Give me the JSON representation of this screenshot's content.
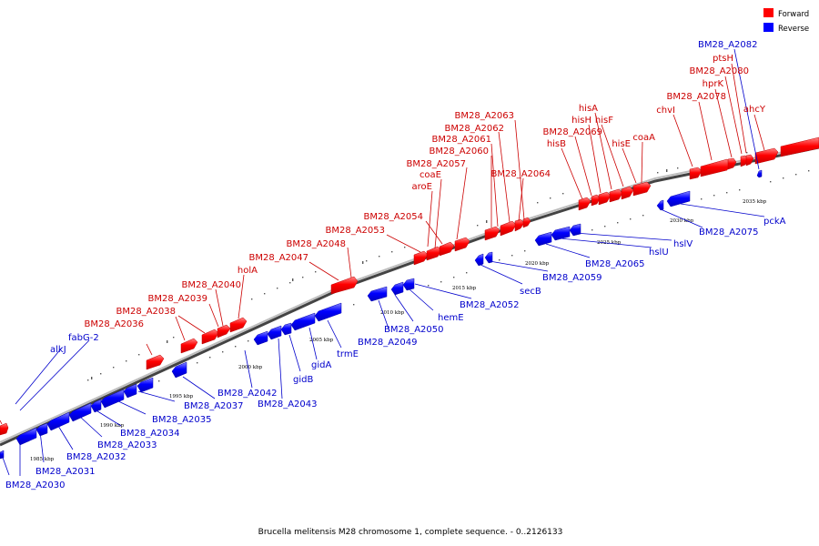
{
  "caption": "Brucella melitensis M28 chromosome 1, complete sequence. - 0..2126133",
  "legend": {
    "forward": {
      "label": "Forward",
      "color": "#ff0000"
    },
    "reverse": {
      "label": "Reverse",
      "color": "#0000ff"
    }
  },
  "ticks": [
    {
      "label": "1985 kbp",
      "x": 1985
    },
    {
      "label": "1990 kbp",
      "x": 1990
    },
    {
      "label": "1995 kbp",
      "x": 1995
    },
    {
      "label": "2000 kbp",
      "x": 2000
    },
    {
      "label": "2005 kbp",
      "x": 2005
    },
    {
      "label": "2010 kbp",
      "x": 2010
    },
    {
      "label": "2015 kbp",
      "x": 2015
    },
    {
      "label": "2020 kbp",
      "x": 2020
    },
    {
      "label": "2025 kbp",
      "x": 2025
    },
    {
      "label": "2030 kbp",
      "x": 2030
    },
    {
      "label": "2035 kbp",
      "x": 2035
    }
  ],
  "forward_labels": [
    "BM28_A2036",
    "BM28_A2038",
    "BM28_A2039",
    "BM28_A2040",
    "holA",
    "BM28_A2047",
    "BM28_A2048",
    "BM28_A2053",
    "BM28_A2054",
    "aroE",
    "coaE",
    "BM28_A2057",
    "BM28_A2060",
    "BM28_A2061",
    "BM28_A2062",
    "BM28_A2063",
    "BM28_A2064",
    "hisB",
    "BM28_A2069",
    "hisH",
    "hisA",
    "hisF",
    "hisE",
    "coaA",
    "chvI",
    "BM28_A2078",
    "hprK",
    "BM28_A2080",
    "ptsH",
    "ahcY"
  ],
  "reverse_labels": [
    "BM28_A2030",
    "BM28_A2031",
    "BM28_A2032",
    "BM28_A2033",
    "BM28_A2034",
    "BM28_A2035",
    "alkJ",
    "fabG-2",
    "BM28_A2037",
    "BM28_A2042",
    "BM28_A2043",
    "gidB",
    "gidA",
    "trmE",
    "BM28_A2049",
    "BM28_A2050",
    "hemE",
    "BM28_A2052",
    "secB",
    "BM28_A2059",
    "BM28_A2065",
    "hslU",
    "hslV",
    "BM28_A2075",
    "pckA",
    "BM28_A2082"
  ]
}
